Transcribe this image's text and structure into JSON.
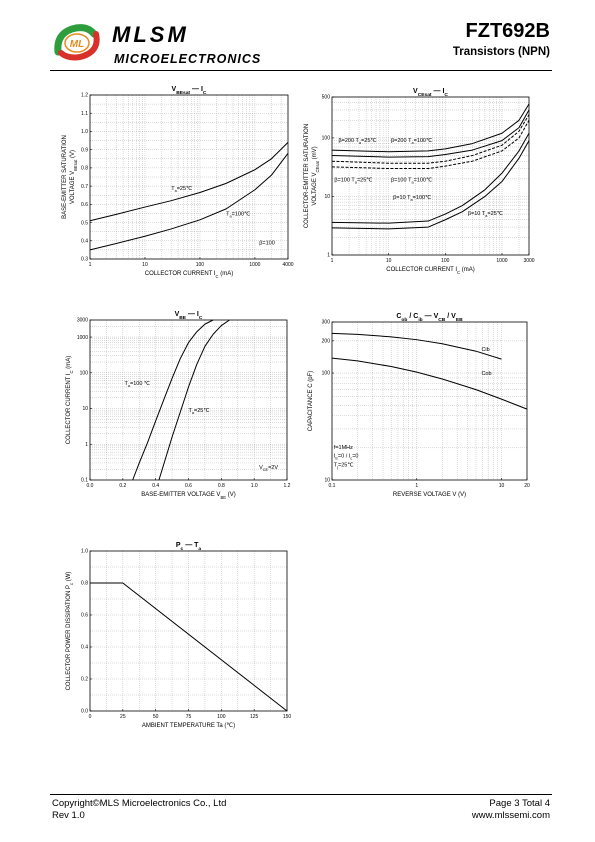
{
  "header": {
    "brand": "MLSM",
    "brand_sub": "MICROELECTRONICS",
    "part_number": "FZT692B",
    "part_type": "Transistors (NPN)",
    "colors": {
      "logo_green": "#2e9e3c",
      "logo_red": "#d8302a",
      "logo_orange": "#e88a1e"
    }
  },
  "footer": {
    "copyright": "Copyright©MLS Microelectronics Co., Ltd",
    "revision": "Rev 1.0",
    "page": "Page 3 Total 4",
    "website": "www.mlssemi.com"
  },
  "chart_data": [
    {
      "id": "vbesat",
      "type": "line",
      "title_parts": [
        "V",
        "BEsat",
        "—",
        "I",
        "C"
      ],
      "xlabel": "COLLECTOR CURRENT",
      "xlabel_sym": "I",
      "xlabel_sub": "C",
      "xlabel_unit": "(mA)",
      "ylabel": "BASE-EMITTER SATURATION",
      "ylabel2": "VOLTAGE",
      "ylabel2_sym": "V",
      "ylabel2_sub": "BEsat",
      "ylabel2_unit": "(V)",
      "xscale": "log",
      "xlim": [
        1,
        4000
      ],
      "ylim": [
        0.3,
        1.2
      ],
      "xticks": [
        1,
        10,
        100,
        1000,
        4000
      ],
      "xtick_labels": [
        "1",
        "10",
        "100",
        "1000",
        "4000"
      ],
      "yticks": [
        0.3,
        0.4,
        0.5,
        0.6,
        0.7,
        0.8,
        0.9,
        1.0,
        1.1,
        1.2
      ],
      "ytick_labels": [
        "0.3",
        "0.4",
        "0.5",
        "0.6",
        "0.7",
        "0.8",
        "0.9",
        "1.0",
        "1.1",
        "1.2"
      ],
      "grid": true,
      "series": [
        {
          "name": "T=25℃",
          "x": [
            1,
            3,
            10,
            30,
            100,
            300,
            1000,
            2000,
            4000
          ],
          "y": [
            0.51,
            0.545,
            0.585,
            0.62,
            0.665,
            0.715,
            0.79,
            0.85,
            0.94
          ]
        },
        {
          "name": "T=100℃",
          "x": [
            1,
            3,
            10,
            30,
            100,
            300,
            1000,
            2000,
            4000
          ],
          "y": [
            0.35,
            0.385,
            0.425,
            0.465,
            0.515,
            0.575,
            0.68,
            0.76,
            0.88
          ]
        }
      ],
      "annotations": [
        {
          "label_main": "T",
          "label_sub": "a",
          "label_rest": "=25℃",
          "x": 30,
          "y": 0.68
        },
        {
          "label_main": "T",
          "label_sub": "a",
          "label_rest": "=100℃",
          "x": 300,
          "y": 0.54
        },
        {
          "label_main": "β=100",
          "label_sub": "",
          "label_rest": "",
          "x": 1200,
          "y": 0.38
        }
      ]
    },
    {
      "id": "vcesat",
      "type": "line",
      "title_parts": [
        "V",
        "CEsat",
        "—",
        "I",
        "C"
      ],
      "xlabel": "COLLECTOR CURRENT",
      "xlabel_sym": "I",
      "xlabel_sub": "C",
      "xlabel_unit": "(mA)",
      "ylabel": "COLLECTOR-EMITTER SATURATION",
      "ylabel2": "VOLTAGE",
      "ylabel2_sym": "V",
      "ylabel2_sub": "CEsat",
      "ylabel2_unit": "(mV)",
      "xscale": "log",
      "yscale": "log",
      "xlim": [
        1,
        3000
      ],
      "ylim": [
        1,
        500
      ],
      "xticks": [
        1,
        10,
        100,
        1000,
        3000
      ],
      "xtick_labels": [
        "1",
        "10",
        "100",
        "1000",
        "3000"
      ],
      "yticks": [
        1,
        10,
        100,
        500
      ],
      "ytick_labels": [
        "1",
        "10",
        "100",
        "500"
      ],
      "grid": true,
      "series": [
        {
          "name": "β=200 T=25℃",
          "style": "solid",
          "x": [
            1,
            10,
            50,
            100,
            300,
            1000,
            2000,
            3000
          ],
          "y": [
            50,
            47,
            48,
            52,
            62,
            90,
            150,
            300
          ]
        },
        {
          "name": "β=200 T=100℃",
          "style": "solid",
          "x": [
            1,
            10,
            50,
            100,
            300,
            1000,
            2000,
            3000
          ],
          "y": [
            62,
            58,
            60,
            65,
            80,
            120,
            200,
            380
          ]
        },
        {
          "name": "β=100 T=25℃",
          "style": "dashed",
          "x": [
            1,
            10,
            50,
            100,
            300,
            1000,
            2000,
            3000
          ],
          "y": [
            32,
            30,
            30,
            33,
            40,
            60,
            100,
            200
          ]
        },
        {
          "name": "β=100 T=100℃",
          "style": "dashed",
          "x": [
            1,
            10,
            50,
            100,
            300,
            1000,
            2000,
            3000
          ],
          "y": [
            40,
            37,
            37,
            40,
            50,
            75,
            130,
            250
          ]
        },
        {
          "name": "β=10 T=100℃",
          "style": "solid",
          "x": [
            1,
            10,
            50,
            100,
            200,
            500,
            1000,
            2000,
            3000
          ],
          "y": [
            3.6,
            3.5,
            3.8,
            5,
            7,
            13,
            25,
            60,
            120
          ]
        },
        {
          "name": "β=10 T=25℃",
          "style": "solid",
          "x": [
            1,
            10,
            50,
            100,
            200,
            500,
            1000,
            2000,
            3000
          ],
          "y": [
            2.9,
            2.8,
            3.0,
            4,
            5.5,
            10,
            18,
            45,
            90
          ]
        }
      ],
      "annotations": [
        {
          "label_main": "β=200 T",
          "label_sub": "a",
          "label_rest": "=25℃",
          "x": 1.3,
          "y": 85
        },
        {
          "label_main": "β=200 T",
          "label_sub": "a",
          "label_rest": "=100℃",
          "x": 11,
          "y": 85
        },
        {
          "label_main": "β=100 T",
          "label_sub": "a",
          "label_rest": "=25℃",
          "x": 1.1,
          "y": 18
        },
        {
          "label_main": "β=100 T",
          "label_sub": "a",
          "label_rest": "=100℃",
          "x": 11,
          "y": 18
        },
        {
          "label_main": "β=10 T",
          "label_sub": "a",
          "label_rest": "=100℃",
          "x": 12,
          "y": 9
        },
        {
          "label_main": "β=10 T",
          "label_sub": "a",
          "label_rest": "=25℃",
          "x": 250,
          "y": 4.8
        }
      ]
    },
    {
      "id": "vbe",
      "type": "line",
      "title_parts": [
        "V",
        "BE",
        "—",
        "I",
        "C"
      ],
      "xlabel": "BASE-EMITTER VOLTAGE",
      "xlabel_sym": "V",
      "xlabel_sub": "BE",
      "xlabel_unit": "(V)",
      "ylabel": "COLLECTOR CURRENT",
      "ylabel2": "",
      "ylabel2_sym": "I",
      "ylabel2_sub": "C",
      "ylabel2_unit": "(mA)",
      "yscale": "log",
      "xlim": [
        0,
        1.2
      ],
      "ylim": [
        0.1,
        3000
      ],
      "xticks": [
        0,
        0.2,
        0.4,
        0.6,
        0.8,
        1.0,
        1.2
      ],
      "xtick_labels": [
        "0.0",
        "0.2",
        "0.4",
        "0.6",
        "0.8",
        "1.0",
        "1.2"
      ],
      "yticks": [
        0.1,
        1,
        10,
        100,
        1000,
        3000
      ],
      "ytick_labels": [
        "0.1",
        "1",
        "10",
        "100",
        "1000",
        "3000"
      ],
      "grid": true,
      "series": [
        {
          "name": "T=100 ℃",
          "x": [
            0.26,
            0.3,
            0.35,
            0.4,
            0.45,
            0.5,
            0.55,
            0.6,
            0.65,
            0.7,
            0.75
          ],
          "y": [
            0.1,
            0.3,
            1.1,
            4.5,
            18,
            70,
            250,
            700,
            1400,
            2300,
            3000
          ]
        },
        {
          "name": "T=25℃",
          "x": [
            0.42,
            0.46,
            0.5,
            0.55,
            0.6,
            0.65,
            0.7,
            0.75,
            0.8,
            0.85
          ],
          "y": [
            0.1,
            0.4,
            1.6,
            8,
            40,
            170,
            550,
            1200,
            2100,
            3000
          ]
        }
      ],
      "annotations": [
        {
          "label_main": "T",
          "label_sub": "a",
          "label_rest": "=100 ℃",
          "x": 0.21,
          "y": 45
        },
        {
          "label_main": "T",
          "label_sub": "a",
          "label_rest": "=25℃",
          "x": 0.6,
          "y": 8
        },
        {
          "label_main": "V",
          "label_sub": "CE",
          "label_rest": "=2V",
          "x": 1.03,
          "y": 0.2
        }
      ]
    },
    {
      "id": "cap",
      "type": "line",
      "title_parts": [
        "C",
        "ob",
        "/",
        "C",
        "ib",
        "—",
        "V",
        "CB",
        "/",
        "V",
        "EB"
      ],
      "xlabel": "REVERSE  VOLTAGE",
      "xlabel_sym": "V",
      "xlabel_sub": "",
      "xlabel_unit": "(V)",
      "ylabel": "CAPACITANCE",
      "ylabel2": "",
      "ylabel2_sym": "C",
      "ylabel2_sub": "",
      "ylabel2_unit": "(pF)",
      "xscale": "log",
      "yscale": "log",
      "xlim": [
        0.1,
        20
      ],
      "ylim": [
        10,
        300
      ],
      "xticks": [
        0.1,
        1,
        10,
        20
      ],
      "xtick_labels": [
        "0.1",
        "1",
        "10",
        "20"
      ],
      "yticks": [
        10,
        100,
        200,
        300
      ],
      "ytick_labels": [
        "10",
        "100",
        "200",
        "300"
      ],
      "grid": true,
      "series": [
        {
          "name": "Cib",
          "x": [
            0.1,
            0.2,
            0.5,
            1,
            2,
            5,
            10
          ],
          "y": [
            235,
            230,
            218,
            205,
            188,
            160,
            135
          ]
        },
        {
          "name": "Cob",
          "x": [
            0.1,
            0.2,
            0.5,
            1,
            2,
            5,
            10,
            20
          ],
          "y": [
            138,
            130,
            115,
            102,
            88,
            70,
            57,
            46
          ]
        }
      ],
      "annotations": [
        {
          "label_main": "Cib",
          "label_sub": "",
          "label_rest": "",
          "x": 5.8,
          "y": 160
        },
        {
          "label_main": "Cob",
          "label_sub": "",
          "label_rest": "",
          "x": 5.8,
          "y": 96
        },
        {
          "label_main": "f=1MHz",
          "label_sub": "",
          "label_rest": "",
          "x": 0.105,
          "y": 19.5
        },
        {
          "label_main": "I",
          "label_sub": "E",
          "label_rest": "=0 / I",
          "label_sub2": "c",
          "label_rest2": "=0",
          "x": 0.105,
          "y": 16.2
        },
        {
          "label_main": "T",
          "label_sub": "j",
          "label_rest": "=25℃",
          "x": 0.105,
          "y": 13.4
        }
      ]
    },
    {
      "id": "pc",
      "type": "line",
      "title_parts": [
        "P",
        "c",
        "—",
        "T",
        "a"
      ],
      "xlabel": "AMBIENT TEMPERATURE",
      "xlabel_sym": "Ta",
      "xlabel_sub": "",
      "xlabel_unit": "(℃)",
      "ylabel": "COLLECTOR POWER DISSIPATION",
      "ylabel2": "",
      "ylabel2_sym": "P",
      "ylabel2_sub": "c",
      "ylabel2_unit": "(W)",
      "xlim": [
        0,
        150
      ],
      "ylim": [
        0,
        1.0
      ],
      "xticks": [
        0,
        25,
        50,
        75,
        100,
        125,
        150
      ],
      "xtick_labels": [
        "0",
        "25",
        "50",
        "75",
        "100",
        "125",
        "150"
      ],
      "yticks": [
        0,
        0.2,
        0.4,
        0.6,
        0.8,
        1.0
      ],
      "ytick_labels": [
        "0.0",
        "0.2",
        "0.4",
        "0.6",
        "0.8",
        "1.0"
      ],
      "grid": true,
      "series": [
        {
          "name": "",
          "x": [
            0,
            25,
            150
          ],
          "y": [
            0.8,
            0.8,
            0
          ]
        }
      ],
      "annotations": []
    }
  ]
}
